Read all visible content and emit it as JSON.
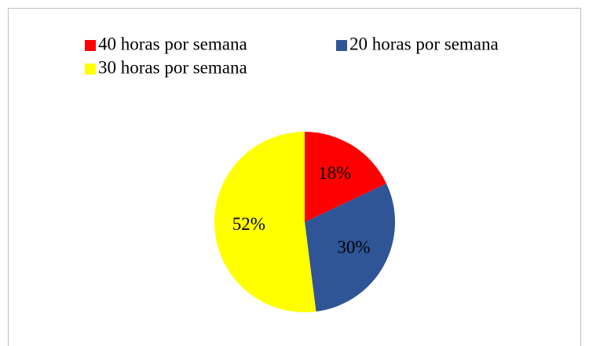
{
  "chart_data": {
    "type": "pie",
    "categories": [
      "40 horas por semana",
      "20 horas por semana",
      "30 horas por semana"
    ],
    "values": [
      18,
      30,
      52
    ],
    "value_labels": [
      "18%",
      "30%",
      "52%"
    ],
    "colors": [
      "#ff0000",
      "#2f5597",
      "#ffff00"
    ],
    "legend": "top"
  }
}
